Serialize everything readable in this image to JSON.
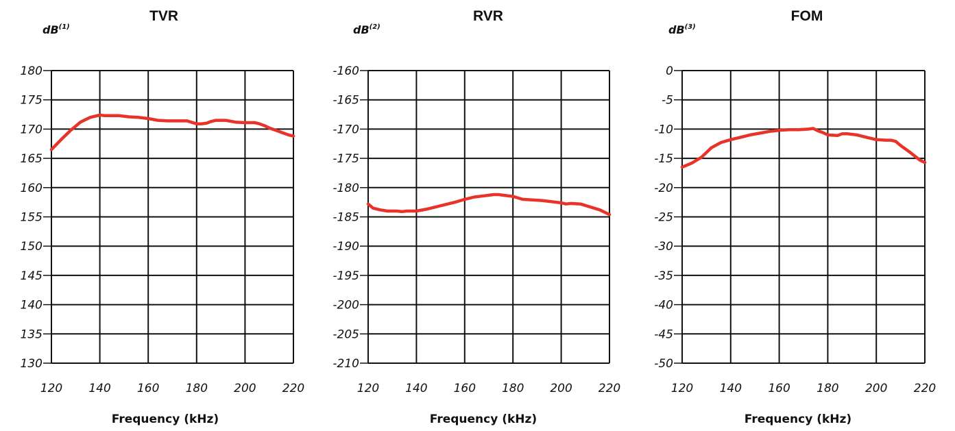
{
  "chart_data": [
    {
      "type": "line",
      "title": "TVR",
      "ylabel": "dB",
      "ylabel_sup": "(1)",
      "xlabel": "Frequency (kHz)",
      "xlim": [
        120,
        220
      ],
      "ylim": [
        130,
        180
      ],
      "xticks": [
        120,
        140,
        160,
        180,
        200,
        220
      ],
      "yticks": [
        180,
        175,
        170,
        165,
        160,
        155,
        150,
        145,
        140,
        135,
        130
      ],
      "grid": true,
      "color": "#e8332a",
      "series": [
        {
          "x": [
            120,
            124,
            128,
            132,
            136,
            140,
            142,
            148,
            152,
            156,
            160,
            164,
            168,
            172,
            176,
            180,
            182,
            184,
            186,
            188,
            190,
            192,
            196,
            200,
            204,
            206,
            208,
            210,
            212,
            214,
            216,
            218,
            220
          ],
          "y": [
            166.5,
            168.2,
            169.8,
            171.2,
            172.0,
            172.4,
            172.3,
            172.3,
            172.1,
            172.0,
            171.8,
            171.5,
            171.4,
            171.4,
            171.4,
            170.9,
            170.9,
            171.0,
            171.3,
            171.5,
            171.5,
            171.5,
            171.2,
            171.1,
            171.1,
            170.9,
            170.6,
            170.2,
            169.9,
            169.6,
            169.3,
            169.0,
            168.8
          ]
        }
      ]
    },
    {
      "type": "line",
      "title": "RVR",
      "ylabel": "dB",
      "ylabel_sup": "(2)",
      "xlabel": "Frequency (kHz)",
      "xlim": [
        120,
        220
      ],
      "ylim": [
        -210,
        -160
      ],
      "xticks": [
        120,
        140,
        160,
        180,
        200,
        220
      ],
      "yticks": [
        -160,
        -165,
        -170,
        -175,
        -180,
        -185,
        -190,
        -195,
        -200,
        -205,
        -210
      ],
      "grid": true,
      "color": "#e8332a",
      "series": [
        {
          "x": [
            120,
            122,
            125,
            128,
            132,
            134,
            136,
            140,
            144,
            148,
            152,
            156,
            160,
            164,
            168,
            172,
            174,
            178,
            180,
            184,
            188,
            192,
            196,
            200,
            202,
            204,
            208,
            212,
            216,
            220
          ],
          "y": [
            -182.8,
            -183.5,
            -183.8,
            -184.0,
            -184.0,
            -184.1,
            -184.0,
            -184.0,
            -183.7,
            -183.3,
            -182.9,
            -182.5,
            -182.0,
            -181.6,
            -181.4,
            -181.2,
            -181.2,
            -181.4,
            -181.5,
            -182.0,
            -182.1,
            -182.2,
            -182.4,
            -182.6,
            -182.8,
            -182.7,
            -182.8,
            -183.3,
            -183.8,
            -184.6
          ]
        }
      ]
    },
    {
      "type": "line",
      "title": "FOM",
      "ylabel": "dB",
      "ylabel_sup": "(3)",
      "xlabel": "Frequency (kHz)",
      "xlim": [
        120,
        220
      ],
      "ylim": [
        -50,
        0
      ],
      "xticks": [
        120,
        140,
        160,
        180,
        200,
        220
      ],
      "yticks": [
        0,
        -5,
        -10,
        -15,
        -20,
        -25,
        -30,
        -35,
        -40,
        -45,
        -50
      ],
      "grid": true,
      "color": "#e8332a",
      "series": [
        {
          "x": [
            120,
            124,
            128,
            132,
            136,
            140,
            144,
            148,
            152,
            156,
            160,
            164,
            168,
            172,
            174,
            176,
            178,
            180,
            184,
            186,
            188,
            192,
            196,
            200,
            204,
            206,
            208,
            210,
            214,
            218,
            220
          ],
          "y": [
            -16.5,
            -15.8,
            -14.8,
            -13.2,
            -12.3,
            -11.8,
            -11.4,
            -11.0,
            -10.7,
            -10.4,
            -10.2,
            -10.1,
            -10.1,
            -10.0,
            -9.9,
            -10.3,
            -10.6,
            -11.0,
            -11.1,
            -10.8,
            -10.8,
            -11.0,
            -11.4,
            -11.8,
            -11.9,
            -11.9,
            -12.1,
            -12.8,
            -14.0,
            -15.3,
            -15.7
          ]
        }
      ]
    }
  ]
}
